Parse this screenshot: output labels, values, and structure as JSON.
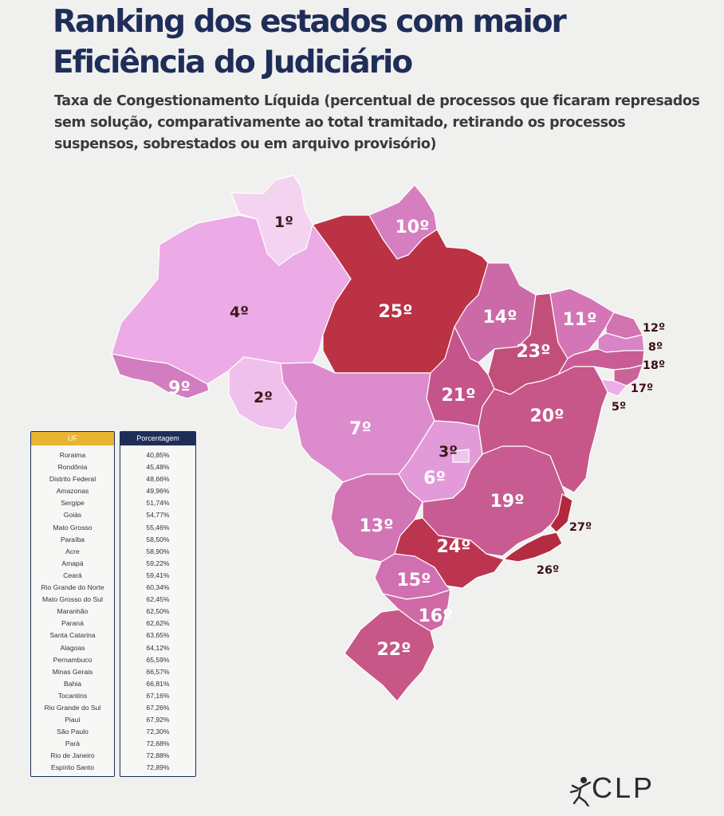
{
  "title": "Ranking dos estados com maior Eficiência do Judiciário",
  "subtitle": "Taxa de Congestionamento Líquida (percentual de processos que ficaram represados sem solução, comparativamente ao total tramitado, retirando os processos suspensos, sobrestados ou em arquivo provisório)",
  "colors": {
    "title": "#1f2d59",
    "uf_header": "#e9b431",
    "pct_header": "#1f2d59",
    "scale": [
      "#f4d3f0",
      "#e8a2e0",
      "#d67fc0",
      "#c5599a",
      "#b93a5c"
    ]
  },
  "map": {
    "states": [
      {
        "uf": "RR",
        "name": "Roraima",
        "rank": "1º",
        "fill": "#f4d3f0"
      },
      {
        "uf": "AP",
        "name": "Amapá",
        "rank": "10º",
        "fill": "#d67fc0"
      },
      {
        "uf": "AM",
        "name": "Amazonas",
        "rank": "4º",
        "fill": "#ecaae6"
      },
      {
        "uf": "PA",
        "name": "Pará",
        "rank": "25º",
        "fill": "#ba3244"
      },
      {
        "uf": "AC",
        "name": "Acre",
        "rank": "9º",
        "fill": "#d27dbf"
      },
      {
        "uf": "RO",
        "name": "Rondônia",
        "rank": "2º",
        "fill": "#f0c0ec"
      },
      {
        "uf": "MT",
        "name": "Mato Grosso",
        "rank": "7º",
        "fill": "#dc8ccd"
      },
      {
        "uf": "MA",
        "name": "Maranhão",
        "rank": "14º",
        "fill": "#cc6aa8"
      },
      {
        "uf": "PI",
        "name": "Piauí",
        "rank": "23º",
        "fill": "#c24f7a"
      },
      {
        "uf": "CE",
        "name": "Ceará",
        "rank": "11º",
        "fill": "#d476b6"
      },
      {
        "uf": "RN",
        "name": "Rio Grande do Norte",
        "rank": "12º",
        "fill": "#d274b0"
      },
      {
        "uf": "PB",
        "name": "Paraíba",
        "rank": "8º",
        "fill": "#d884c6"
      },
      {
        "uf": "PE",
        "name": "Pernambuco",
        "rank": "18º",
        "fill": "#c95c94"
      },
      {
        "uf": "AL",
        "name": "Alagoas",
        "rank": "17º",
        "fill": "#cc6398"
      },
      {
        "uf": "SE",
        "name": "Sergipe",
        "rank": "5º",
        "fill": "#ecaee8"
      },
      {
        "uf": "TO",
        "name": "Tocantins",
        "rank": "21º",
        "fill": "#c4548a"
      },
      {
        "uf": "BA",
        "name": "Bahia",
        "rank": "20º",
        "fill": "#c75788"
      },
      {
        "uf": "GO",
        "name": "Goiás",
        "rank": "6º",
        "fill": "#e29bd8"
      },
      {
        "uf": "DF",
        "name": "Distrito Federal",
        "rank": "3º",
        "fill": "#f0c4ec"
      },
      {
        "uf": "MS",
        "name": "Mato Grosso do Sul",
        "rank": "13º",
        "fill": "#d175b4"
      },
      {
        "uf": "MG",
        "name": "Minas Gerais",
        "rank": "19º",
        "fill": "#c85c92"
      },
      {
        "uf": "SP",
        "name": "São Paulo",
        "rank": "24º",
        "fill": "#bc3550"
      },
      {
        "uf": "RJ",
        "name": "Rio de Janeiro",
        "rank": "26º",
        "fill": "#b52c42"
      },
      {
        "uf": "ES",
        "name": "Espírito Santo",
        "rank": "27º",
        "fill": "#b3283c"
      },
      {
        "uf": "PR",
        "name": "Paraná",
        "rank": "15º",
        "fill": "#d070b0"
      },
      {
        "uf": "SC",
        "name": "Santa Catarina",
        "rank": "16º",
        "fill": "#cf6aa6"
      },
      {
        "uf": "RS",
        "name": "Rio Grande do Sul",
        "rank": "22º",
        "fill": "#c65786"
      }
    ]
  },
  "table": {
    "header_uf": "UF",
    "header_pct": "Porcentagem",
    "rows": [
      {
        "uf": "Roraima",
        "pct": "40,85%"
      },
      {
        "uf": "Rondônia",
        "pct": "45,48%"
      },
      {
        "uf": "Distrito Federal",
        "pct": "48,66%"
      },
      {
        "uf": "Amazonas",
        "pct": "49,96%"
      },
      {
        "uf": "Sergipe",
        "pct": "51,74%"
      },
      {
        "uf": "Goiás",
        "pct": "54,77%"
      },
      {
        "uf": "Mato Grosso",
        "pct": "55,46%"
      },
      {
        "uf": "Paraíba",
        "pct": "58,50%"
      },
      {
        "uf": "Acre",
        "pct": "58,90%"
      },
      {
        "uf": "Amapá",
        "pct": "59,22%"
      },
      {
        "uf": "Ceará",
        "pct": "59,41%"
      },
      {
        "uf": "Rio Grande do Norte",
        "pct": "60,34%"
      },
      {
        "uf": "Mato Grosso do Sul",
        "pct": "62,45%"
      },
      {
        "uf": "Maranhão",
        "pct": "62,50%"
      },
      {
        "uf": "Paraná",
        "pct": "62,62%"
      },
      {
        "uf": "Santa Catarina",
        "pct": "63,65%"
      },
      {
        "uf": "Alagoas",
        "pct": "64,12%"
      },
      {
        "uf": "Pernambuco",
        "pct": "65,59%"
      },
      {
        "uf": "Minas Gerais",
        "pct": "66,57%"
      },
      {
        "uf": "Bahia",
        "pct": "66,81%"
      },
      {
        "uf": "Tocantins",
        "pct": "67,16%"
      },
      {
        "uf": "Rio Grande do Sul",
        "pct": "67,26%"
      },
      {
        "uf": "Piauí",
        "pct": "67,92%"
      },
      {
        "uf": "São Paulo",
        "pct": "72,30%"
      },
      {
        "uf": "Pará",
        "pct": "72,68%"
      },
      {
        "uf": "Rio de Janeiro",
        "pct": "72,88%"
      },
      {
        "uf": "Espírito Santo",
        "pct": "72,89%"
      }
    ]
  },
  "logo": {
    "text": "CLP"
  }
}
